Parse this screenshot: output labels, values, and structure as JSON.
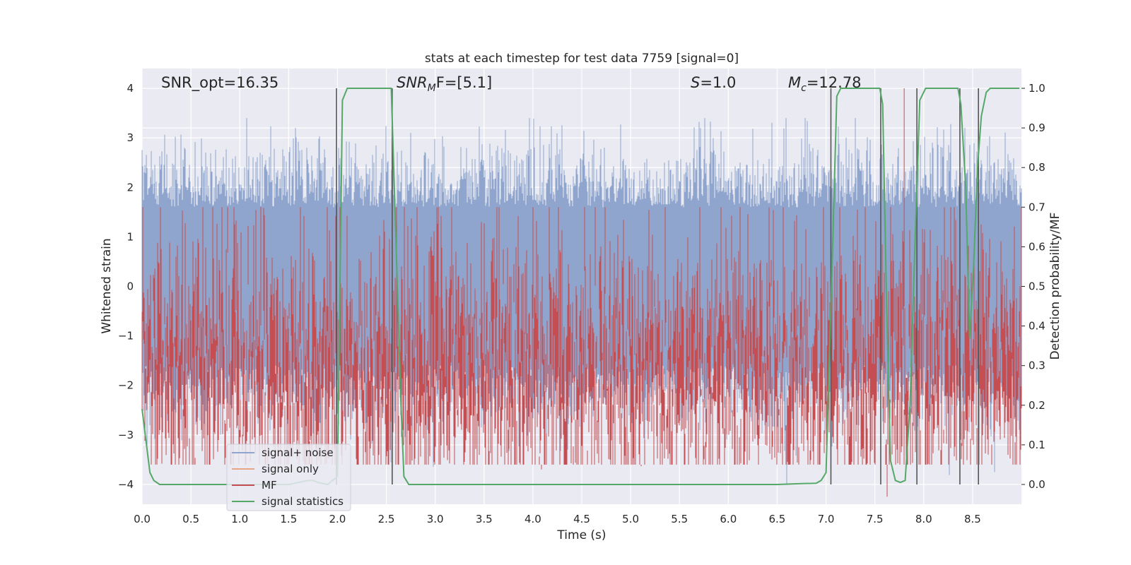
{
  "chart_data": {
    "type": "line",
    "title": "stats at each timestep for test data 7759 [signal=0]",
    "xlabel": "Time (s)",
    "ylabel": "Whitened strain",
    "ylabel_right": "Detection probability/MF",
    "xlim": [
      0,
      9.0
    ],
    "ylim": [
      -4.4,
      4.4
    ],
    "ylim_right": [
      -0.05,
      1.05
    ],
    "x_ticks": [
      0.0,
      0.5,
      1.0,
      1.5,
      2.0,
      2.5,
      3.0,
      3.5,
      4.0,
      4.5,
      5.0,
      5.5,
      6.0,
      6.5,
      7.0,
      7.5,
      8.0,
      8.5
    ],
    "x_tick_labels": [
      "0.0",
      "0.5",
      "1.0",
      "1.5",
      "2.0",
      "2.5",
      "3.0",
      "3.5",
      "4.0",
      "4.5",
      "5.0",
      "5.5",
      "6.0",
      "6.5",
      "7.0",
      "7.5",
      "8.0",
      "8.5"
    ],
    "y_ticks": [
      -4,
      -3,
      -2,
      -1,
      0,
      1,
      2,
      3,
      4
    ],
    "y_tick_labels": [
      "−4",
      "−3",
      "−2",
      "−1",
      "0",
      "1",
      "2",
      "3",
      "4"
    ],
    "y_right_ticks": [
      0.0,
      0.1,
      0.2,
      0.3,
      0.4,
      0.5,
      0.6,
      0.7,
      0.8,
      0.9,
      1.0
    ],
    "y_right_tick_labels": [
      "0.0",
      "0.1",
      "0.2",
      "0.3",
      "0.4",
      "0.5",
      "0.6",
      "0.7",
      "0.8",
      "0.9",
      "1.0"
    ],
    "annotations": {
      "snr_opt": "SNR_opt=16.35",
      "snr_mf_base": "SNR",
      "snr_mf_sub": "M",
      "snr_mf_rest": "F=[5.1]",
      "s_label": "S",
      "s_value": "=1.0",
      "mc_label": "M",
      "mc_sub": "c",
      "mc_value": "=12.78"
    },
    "series": [
      {
        "name": "signal+ noise",
        "color": "#8fa5cd",
        "envelope": {
          "upper_typical": 1.6,
          "upper_peak": 3.4,
          "lower_typical": -1.6,
          "lower_peak": -4.0
        }
      },
      {
        "name": "signal only",
        "color": "#e8a58a",
        "values": []
      },
      {
        "name": "MF",
        "color": "#c44e52",
        "range": [
          0.05,
          0.7
        ],
        "peak": {
          "x": 7.8,
          "y": 1.0
        }
      },
      {
        "name": "signal statistics",
        "color": "#55a868",
        "axis": "right",
        "x": [
          0.0,
          0.08,
          0.12,
          0.18,
          0.3,
          0.5,
          1.0,
          1.5,
          1.6,
          1.7,
          1.75,
          1.8,
          1.9,
          1.95,
          2.0,
          2.05,
          2.1,
          2.15,
          2.3,
          2.5,
          2.55,
          2.6,
          2.65,
          2.68,
          2.73,
          2.8,
          3.5,
          5.0,
          6.5,
          6.75,
          6.9,
          6.95,
          7.0,
          7.07,
          7.11,
          7.15,
          7.3,
          7.5,
          7.55,
          7.58,
          7.62,
          7.66,
          7.71,
          7.76,
          7.81,
          7.86,
          7.91,
          7.96,
          8.02,
          8.07,
          8.2,
          8.35,
          8.38,
          8.43,
          8.47,
          8.51,
          8.55,
          8.59,
          8.64,
          8.68,
          8.73,
          8.8,
          8.98
        ],
        "values": [
          0.19,
          0.03,
          0.01,
          0.0,
          0.0,
          0.0,
          0.0,
          0.0,
          0.005,
          0.01,
          0.01,
          0.005,
          0.0,
          0.01,
          0.02,
          0.97,
          1.0,
          1.0,
          1.0,
          1.0,
          1.0,
          0.6,
          0.2,
          0.02,
          0.0,
          0.0,
          0.0,
          0.0,
          0.0,
          0.002,
          0.003,
          0.01,
          0.03,
          0.62,
          0.98,
          1.0,
          1.0,
          1.0,
          1.0,
          0.96,
          0.45,
          0.06,
          0.01,
          0.005,
          0.01,
          0.2,
          0.6,
          0.97,
          1.0,
          1.0,
          1.0,
          1.0,
          0.96,
          0.75,
          0.37,
          0.55,
          0.8,
          0.93,
          0.99,
          1.0,
          1.0,
          1.0,
          1.0
        ]
      }
    ],
    "vertical_lines_x": [
      1.99,
      2.56,
      7.05,
      7.56,
      7.93,
      8.37,
      8.56
    ],
    "legend": {
      "position": "lower-left",
      "entries": [
        "signal+ noise",
        "signal only",
        "MF",
        "signal statistics"
      ]
    },
    "grid": true
  },
  "colors": {
    "plot_background": "#eaeaf2",
    "grid": "#ffffff",
    "vertical_line": "#555555"
  }
}
